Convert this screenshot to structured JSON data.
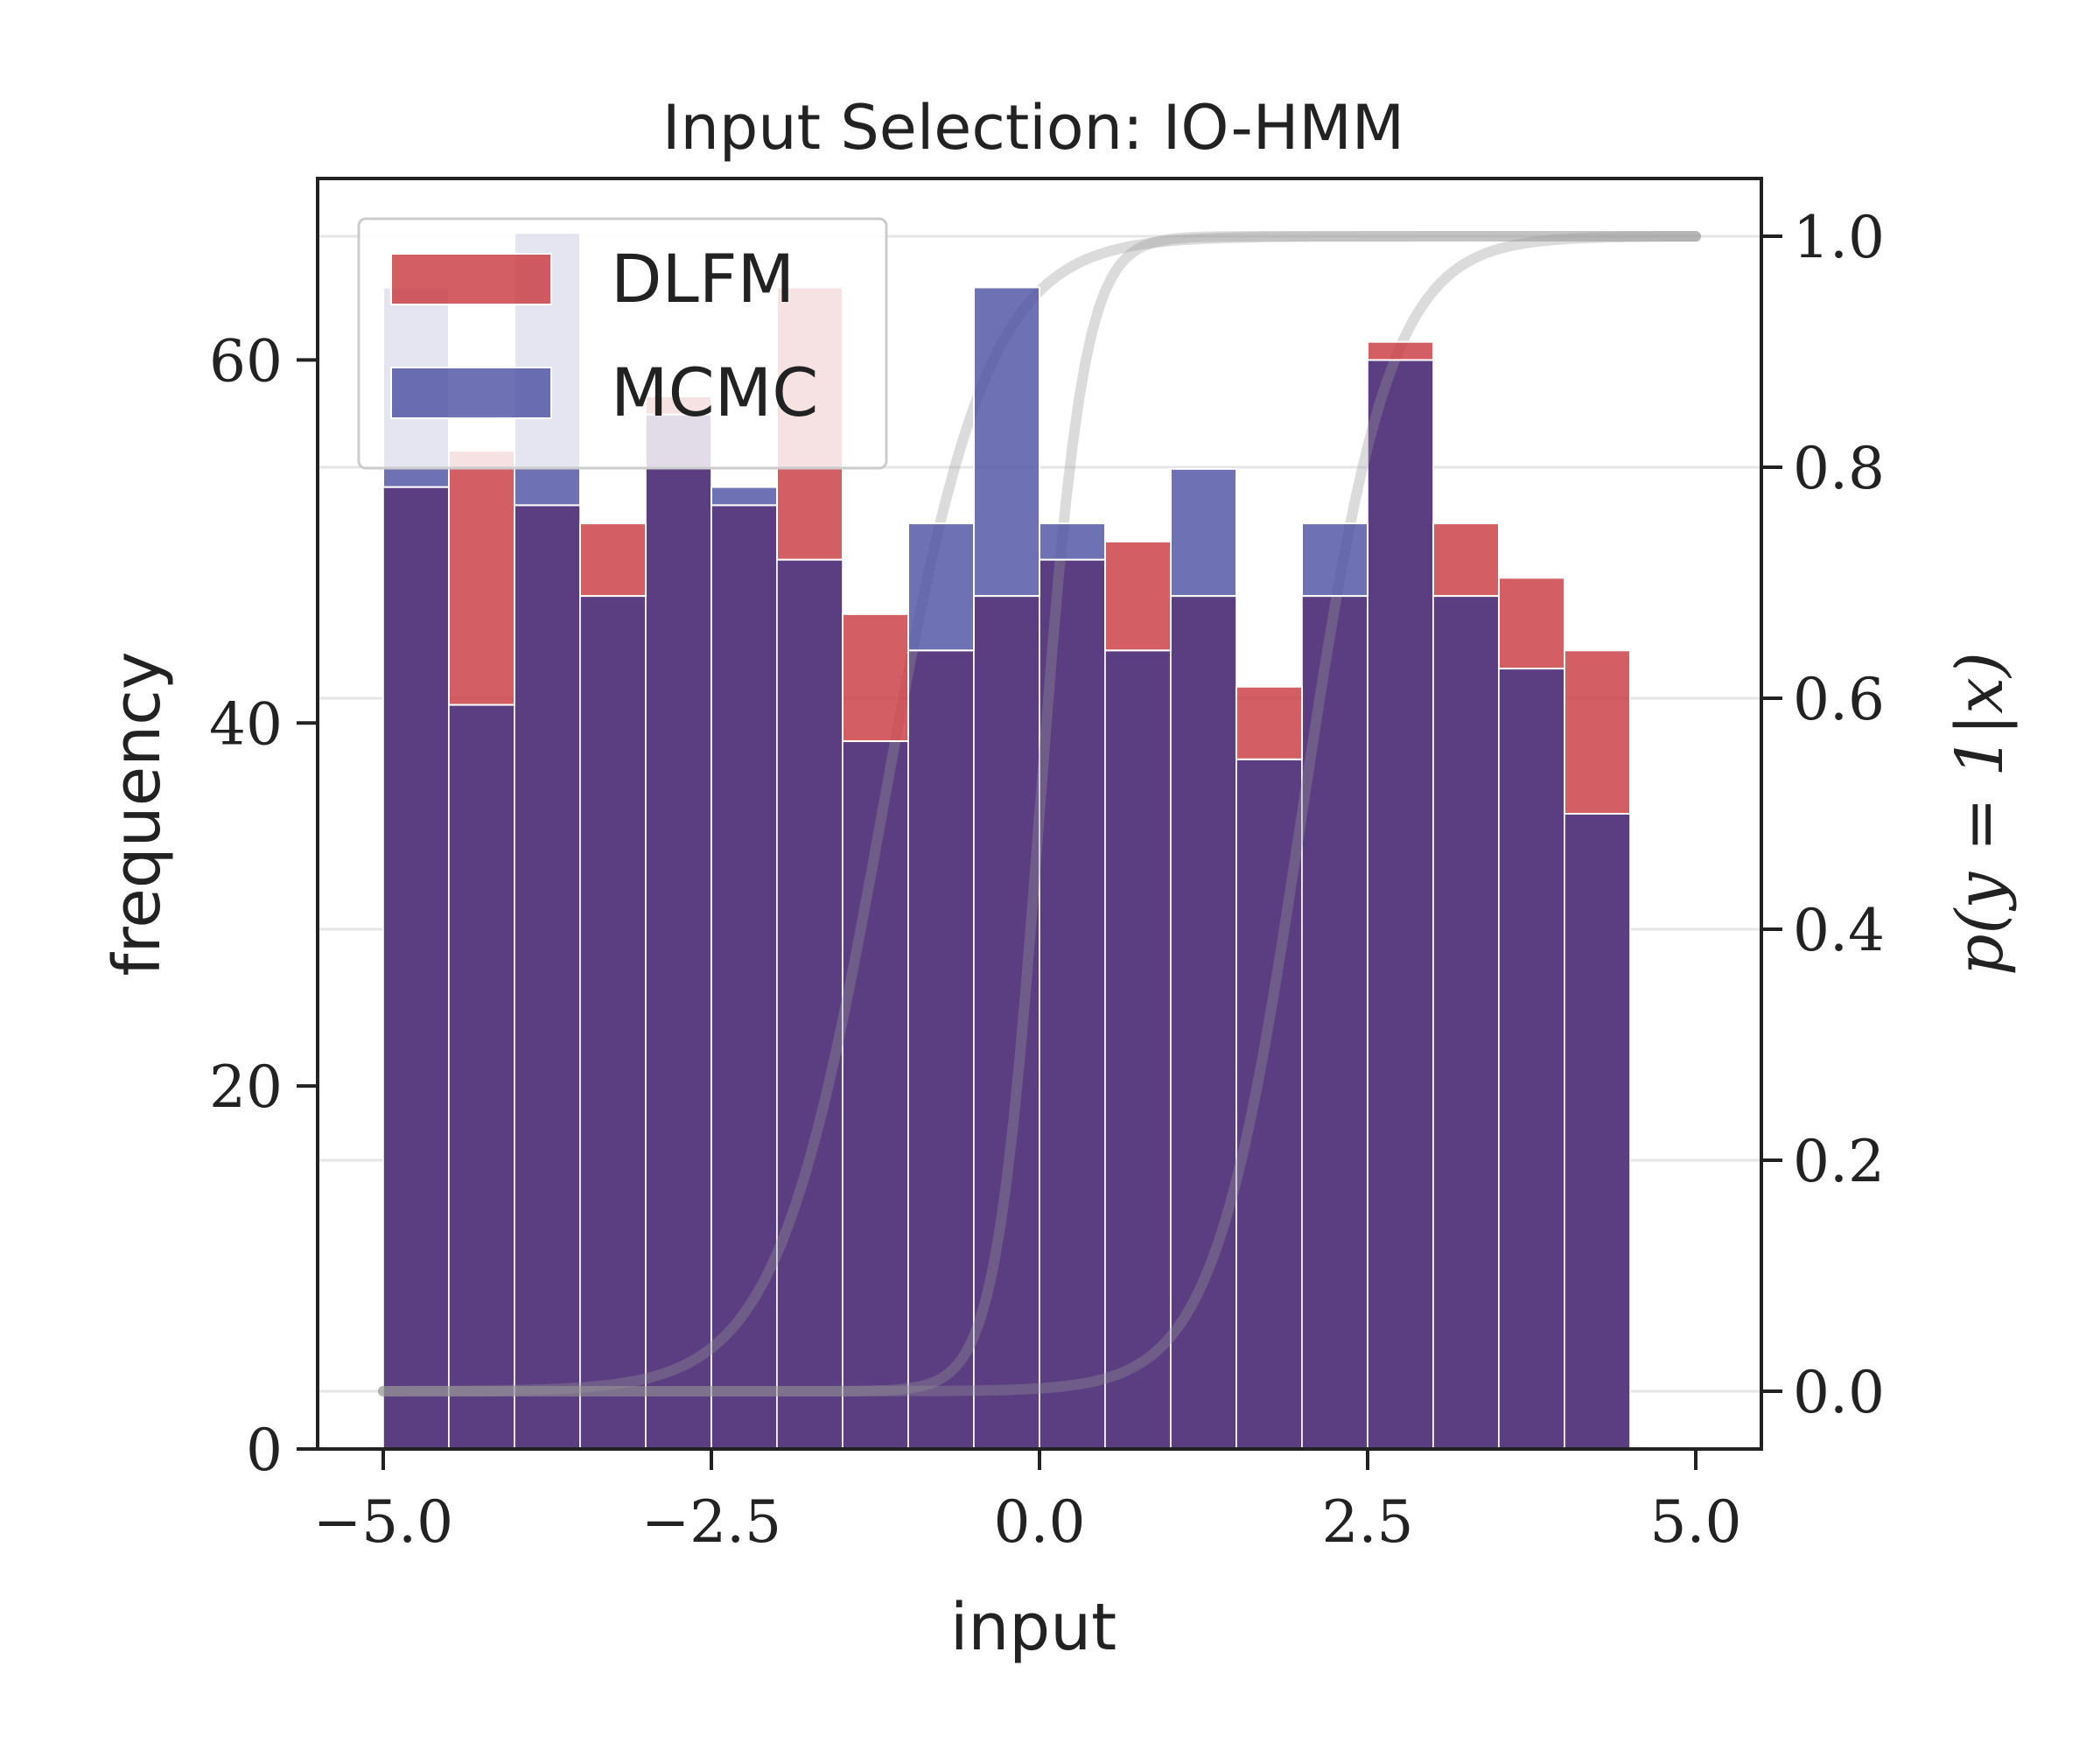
{
  "chart_data": {
    "type": "bar",
    "title": "Input Selection: IO-HMM",
    "xlabel": "input",
    "ylabel": "frequency",
    "ylabel_right": "p(y = 1|x)",
    "xlim": [
      -5.5,
      5.5
    ],
    "ylim": [
      0,
      70
    ],
    "ylim_right": [
      -0.05,
      1.05
    ],
    "xticks": [
      -5.0,
      -2.5,
      0.0,
      2.5,
      5.0
    ],
    "xtick_labels": [
      "−5.0",
      "−2.5",
      "0.0",
      "2.5",
      "5.0"
    ],
    "yticks": [
      0,
      20,
      40,
      60
    ],
    "ytick_labels": [
      "0",
      "20",
      "40",
      "60"
    ],
    "yticks_right": [
      0.0,
      0.2,
      0.4,
      0.6,
      0.8,
      1.0
    ],
    "ytick_right_labels": [
      "0.0",
      "0.2",
      "0.4",
      "0.6",
      "0.8",
      "1.0"
    ],
    "grid": true,
    "legend_position": "top-left",
    "bin_edges": [
      -5.0,
      -4.5,
      -4.0,
      -3.5,
      -3.0,
      -2.5,
      -2.0,
      -1.5,
      -1.0,
      -0.5,
      0.0,
      0.5,
      1.0,
      1.5,
      2.0,
      2.5,
      3.0,
      3.5,
      4.0,
      4.5
    ],
    "series": [
      {
        "name": "DLFM",
        "color": "#c8363c",
        "values": [
          53,
          55,
          52,
          51,
          58,
          52,
          64,
          46,
          44,
          47,
          49,
          50,
          47,
          42,
          47,
          61,
          51,
          48,
          44
        ]
      },
      {
        "name": "MCMC",
        "color": "#4a4ea0",
        "values": [
          64,
          41,
          67,
          47,
          57,
          53,
          49,
          39,
          51,
          64,
          51,
          44,
          54,
          38,
          51,
          60,
          47,
          43,
          35
        ]
      }
    ],
    "curves": [
      {
        "center": -1.2,
        "steepness": 2.5
      },
      {
        "center": 0.0,
        "steepness": 6.0
      },
      {
        "center": 2.0,
        "steepness": 3.0
      }
    ],
    "curve_color": "#999999"
  }
}
